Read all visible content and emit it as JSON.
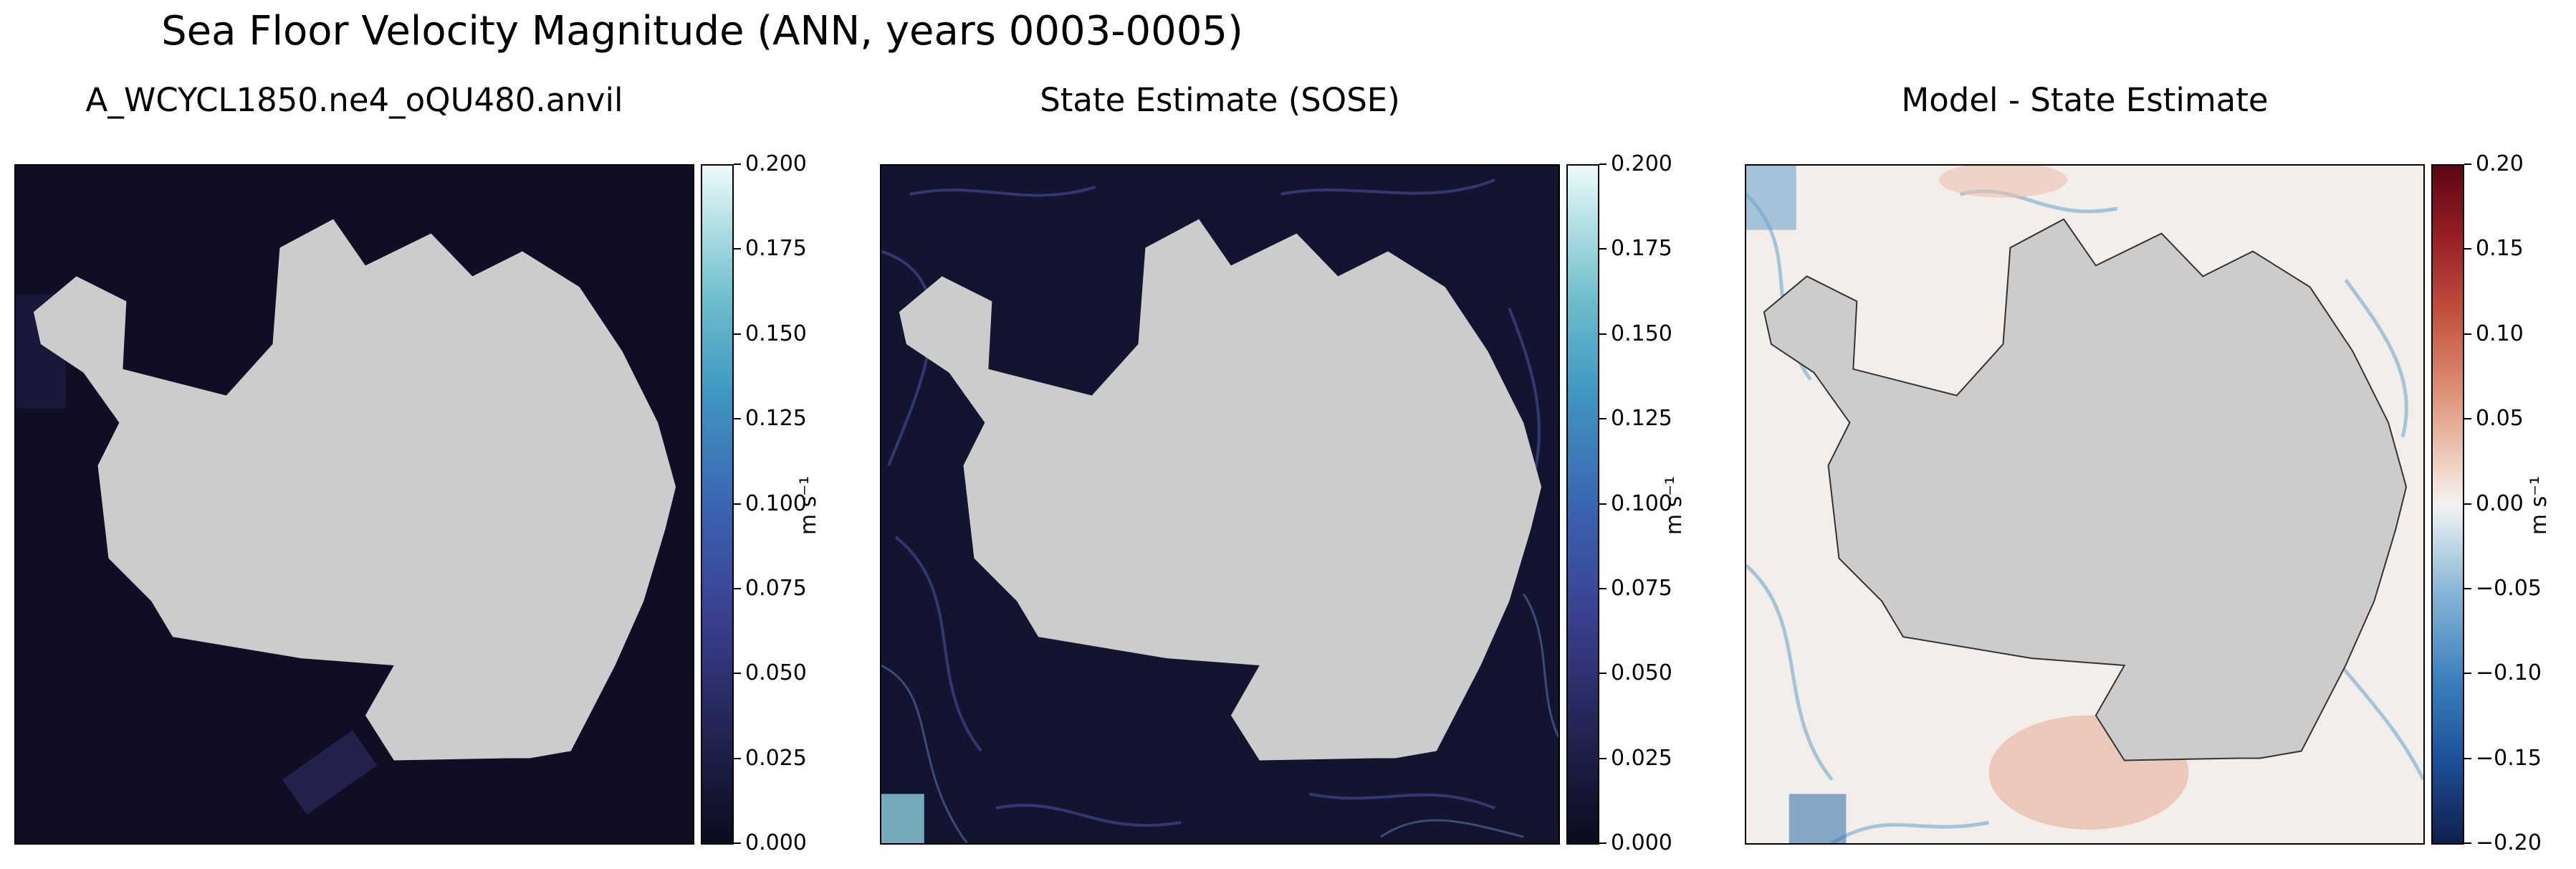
{
  "figure": {
    "title": "Sea Floor Velocity Magnitude (ANN, years 0003-0005)"
  },
  "panels": [
    {
      "title": "A_WCYCL1850.ne4_oQU480.anvil",
      "background": "#0f0d23",
      "colormap": "ice"
    },
    {
      "title": "State Estimate (SOSE)",
      "background": "#121430",
      "colormap": "ice"
    },
    {
      "title": "Model - State Estimate",
      "background": "#f3ebe8",
      "colormap": "balance"
    }
  ],
  "land_color": "#cccccc",
  "chart_data": [
    {
      "type": "heatmap",
      "title": "A_WCYCL1850.ne4_oQU480.anvil",
      "colorbar": {
        "range": [
          0.0,
          0.2
        ],
        "ticks": [
          "0.000",
          "0.025",
          "0.050",
          "0.075",
          "0.100",
          "0.125",
          "0.150",
          "0.175",
          "0.200"
        ],
        "tick_values": [
          0.0,
          0.025,
          0.05,
          0.075,
          0.1,
          0.125,
          0.15,
          0.175,
          0.2
        ],
        "label": "m s⁻¹"
      }
    },
    {
      "type": "heatmap",
      "title": "State Estimate (SOSE)",
      "colorbar": {
        "range": [
          0.0,
          0.2
        ],
        "ticks": [
          "0.000",
          "0.025",
          "0.050",
          "0.075",
          "0.100",
          "0.125",
          "0.150",
          "0.175",
          "0.200"
        ],
        "tick_values": [
          0.0,
          0.025,
          0.05,
          0.075,
          0.1,
          0.125,
          0.15,
          0.175,
          0.2
        ],
        "label": "m s⁻¹"
      }
    },
    {
      "type": "heatmap",
      "title": "Model - State Estimate",
      "colorbar": {
        "range": [
          -0.2,
          0.2
        ],
        "ticks": [
          "−0.20",
          "−0.15",
          "−0.10",
          "−0.05",
          "0.00",
          "0.05",
          "0.10",
          "0.15",
          "0.20"
        ],
        "tick_values": [
          -0.2,
          -0.15,
          -0.1,
          -0.05,
          0.0,
          0.05,
          0.1,
          0.15,
          0.2
        ],
        "label": "m s⁻¹"
      }
    }
  ]
}
